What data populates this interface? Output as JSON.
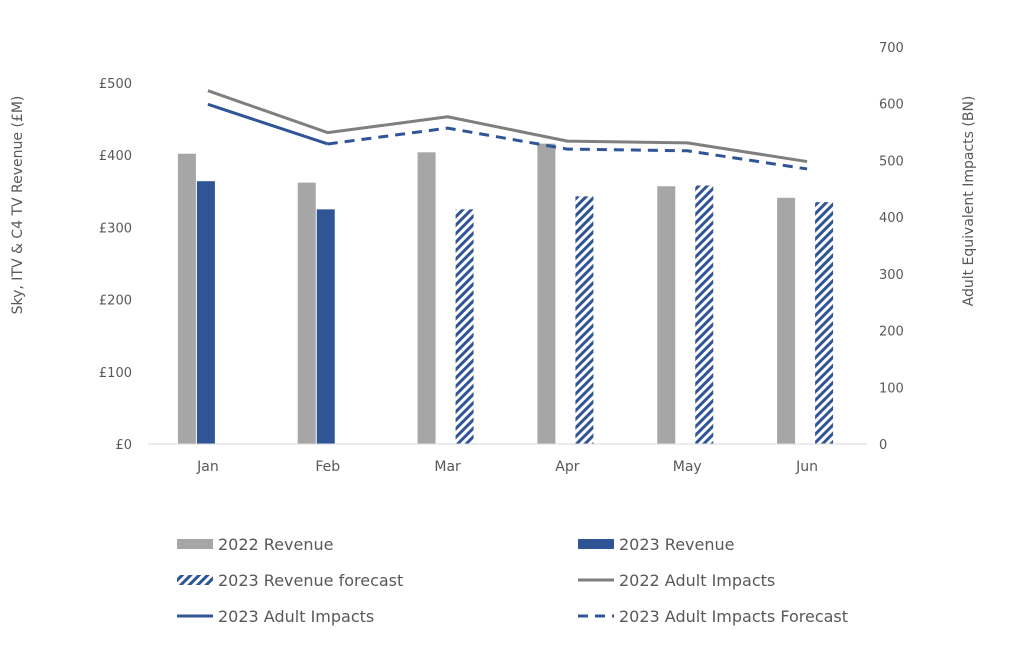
{
  "chart_data": {
    "type": "bar",
    "categories": [
      "Jan",
      "Feb",
      "Mar",
      "Apr",
      "May",
      "Jun"
    ],
    "y_left": {
      "label": "Sky, ITV & C4 TV Revenue (£M)",
      "min": 0,
      "max": 500,
      "step": 100,
      "ticks": [
        "£0",
        "£100",
        "£200",
        "£300",
        "£400",
        "£500"
      ]
    },
    "y_right": {
      "label": "Adult Equivalent Impacts (BN)",
      "min": 0,
      "max": 700,
      "step": 100,
      "ticks": [
        "0",
        "100",
        "200",
        "300",
        "400",
        "500",
        "600",
        "700"
      ]
    },
    "series": [
      {
        "name": "2022 Revenue",
        "kind": "bar",
        "axis": "left",
        "color": "#A6A6A6",
        "values": [
          402,
          362,
          404,
          416,
          357,
          341
        ]
      },
      {
        "name": "2023 Revenue",
        "kind": "bar",
        "axis": "left",
        "color": "#2F5597",
        "values": [
          364,
          325,
          null,
          null,
          null,
          null
        ]
      },
      {
        "name": "2023 Revenue forecast",
        "kind": "bar-hatched",
        "axis": "left",
        "color": "#2F5597",
        "values": [
          null,
          null,
          325,
          343,
          358,
          335
        ]
      },
      {
        "name": "2022 Adult Impacts",
        "kind": "line",
        "axis": "right",
        "color": "#7F7F7F",
        "values": [
          623,
          549,
          577,
          534,
          531,
          498
        ]
      },
      {
        "name": "2023 Adult Impacts",
        "kind": "line",
        "axis": "right",
        "color": "#2F5597",
        "values": [
          599,
          529,
          null,
          null,
          null,
          null
        ]
      },
      {
        "name": "2023 Adult Impacts Forecast",
        "kind": "line-dashed",
        "axis": "right",
        "color": "#2F5597",
        "values": [
          null,
          529,
          557,
          520,
          517,
          485
        ]
      }
    ],
    "legend_position": "bottom",
    "grid": false
  }
}
